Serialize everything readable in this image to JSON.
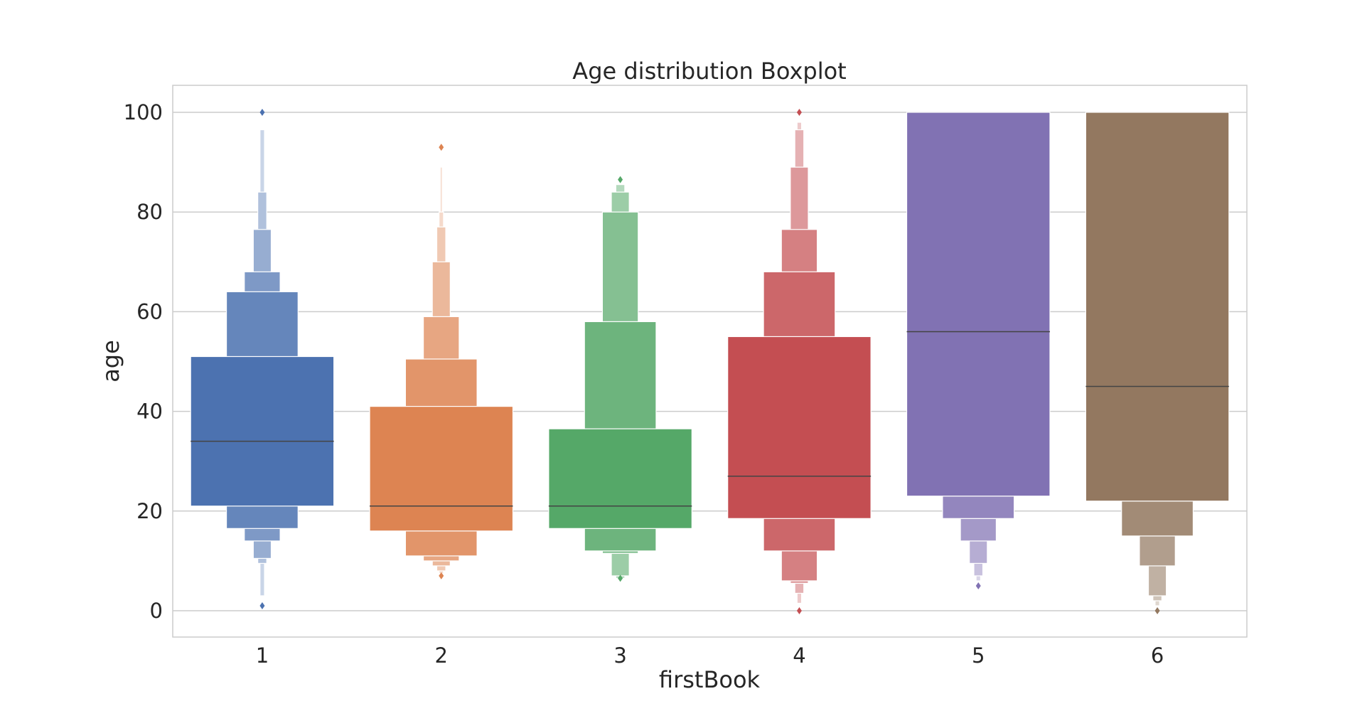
{
  "chart_data": {
    "type": "boxenplot",
    "title": "Age distribution Boxplot",
    "xlabel": "firstBook",
    "ylabel": "age",
    "ylim": [
      -5,
      105
    ],
    "yticks": [
      0,
      20,
      40,
      60,
      80,
      100
    ],
    "grid": true,
    "categories": [
      "1",
      "2",
      "3",
      "4",
      "5",
      "6"
    ],
    "colors": [
      "#4c72b0",
      "#dd8452",
      "#55a868",
      "#c44e52",
      "#8172b3",
      "#937860"
    ],
    "series": [
      {
        "category": "1",
        "median": 34,
        "boxes": [
          [
            21,
            51
          ],
          [
            16.5,
            64
          ],
          [
            14,
            68
          ],
          [
            10.5,
            76.5
          ],
          [
            9.5,
            84
          ],
          [
            3,
            96.5
          ]
        ],
        "outliers": [
          1,
          100
        ]
      },
      {
        "category": "2",
        "median": 21,
        "boxes": [
          [
            16,
            41
          ],
          [
            11,
            50.5
          ],
          [
            10,
            59
          ],
          [
            9,
            70
          ],
          [
            8,
            77
          ],
          [
            7.5,
            80
          ],
          [
            7,
            89
          ]
        ],
        "outliers": [
          7,
          93
        ]
      },
      {
        "category": "3",
        "median": 21,
        "boxes": [
          [
            16.5,
            36.5
          ],
          [
            12,
            58
          ],
          [
            11.5,
            80
          ],
          [
            7,
            84
          ],
          [
            6.5,
            85.5
          ]
        ],
        "outliers": [
          6.5,
          86.5
        ]
      },
      {
        "category": "4",
        "median": 27,
        "boxes": [
          [
            18.5,
            55
          ],
          [
            12,
            68
          ],
          [
            6,
            76.5
          ],
          [
            5.5,
            89
          ],
          [
            3.5,
            96.5
          ],
          [
            1.5,
            98
          ]
        ],
        "outliers": [
          0,
          100
        ]
      },
      {
        "category": "5",
        "median": 56,
        "boxes": [
          [
            23,
            100
          ],
          [
            18.5,
            23
          ],
          [
            14,
            18.5
          ],
          [
            9.5,
            14
          ],
          [
            7,
            9.5
          ],
          [
            6,
            7
          ]
        ],
        "outliers": [
          5
        ]
      },
      {
        "category": "6",
        "median": 45,
        "boxes": [
          [
            22,
            100
          ],
          [
            15,
            22
          ],
          [
            9,
            15
          ],
          [
            3,
            9
          ],
          [
            2,
            3
          ],
          [
            1,
            2
          ]
        ],
        "outliers": [
          0
        ]
      }
    ]
  }
}
